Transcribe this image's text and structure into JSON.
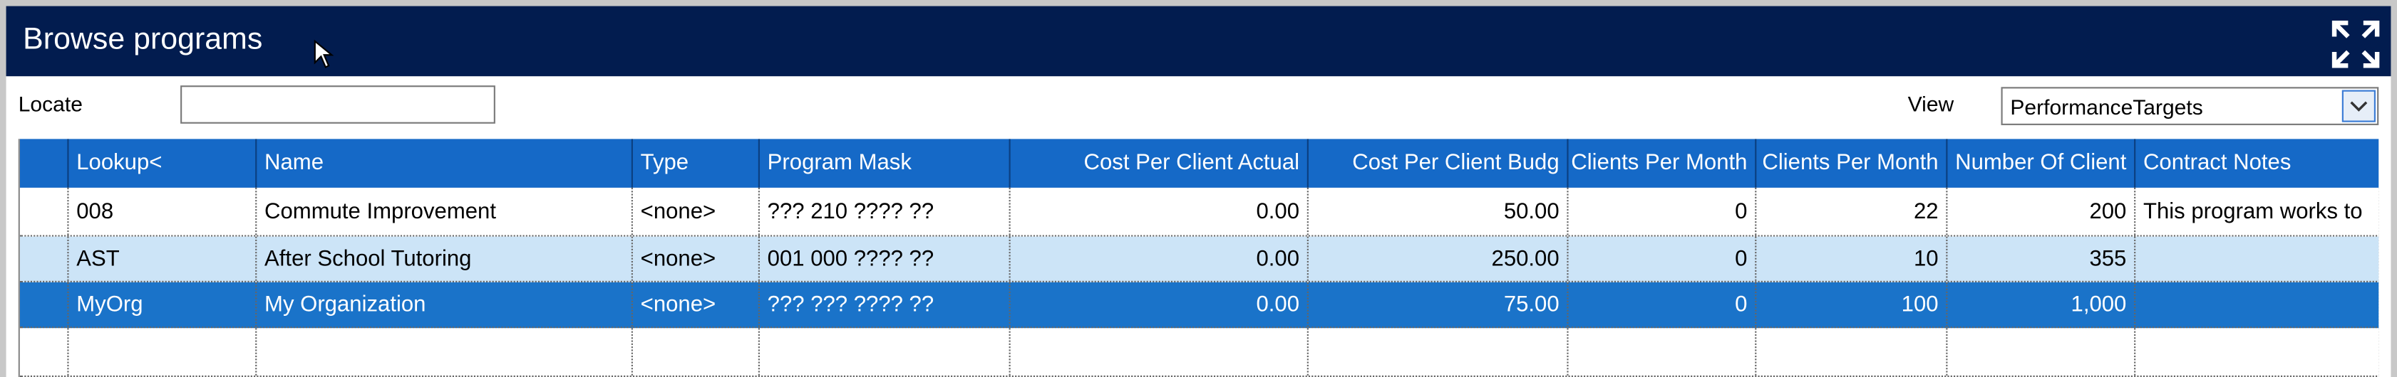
{
  "header": {
    "title": "Browse programs"
  },
  "toolbar": {
    "locate_label": "Locate",
    "view_label": "View",
    "view_value": "PerformanceTargets"
  },
  "table": {
    "columns": [
      "Lookup<",
      "Name",
      "Type",
      "Program Mask",
      "Cost Per Client Actual",
      "Cost Per Client Budg",
      "Clients Per Month",
      "Clients Per Month",
      "Number Of Client",
      "Contract Notes"
    ],
    "rows": [
      [
        "008",
        "Commute Improvement",
        "<none>",
        "??? 210 ???? ??",
        "0.00",
        "50.00",
        "0",
        "22",
        "200",
        "This program works to"
      ],
      [
        "AST",
        "After School Tutoring",
        "<none>",
        "001 000 ???? ??",
        "0.00",
        "250.00",
        "0",
        "10",
        "355"
      ],
      [
        "MyOrg",
        "My Organization",
        "<none>",
        "??? ??? ???? ??",
        "0.00",
        "75.00",
        "0",
        "100",
        "1,000"
      ]
    ]
  }
}
